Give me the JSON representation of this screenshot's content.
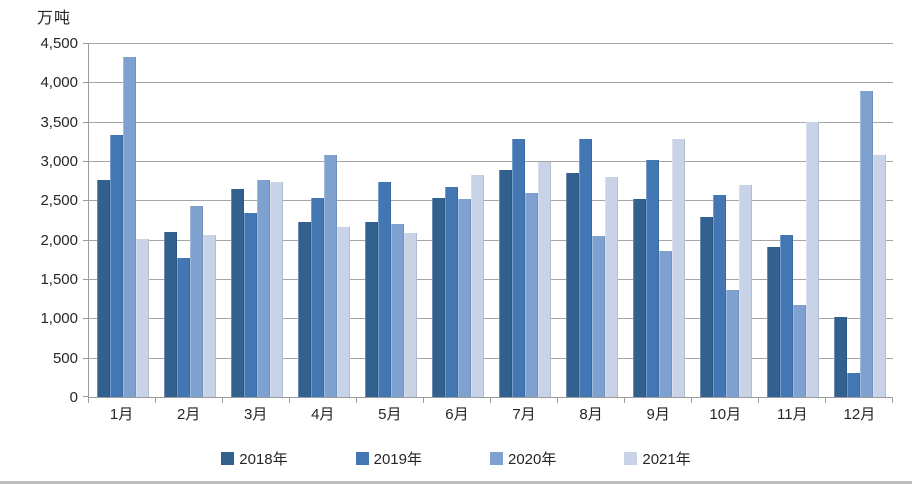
{
  "chart_data": {
    "type": "bar",
    "title": "",
    "unit": "万吨",
    "categories": [
      "1月",
      "2月",
      "3月",
      "4月",
      "5月",
      "6月",
      "7月",
      "8月",
      "9月",
      "10月",
      "11月",
      "12月"
    ],
    "series": [
      {
        "name": "2018年",
        "color": "#32608F",
        "values": [
          2770,
          2100,
          2650,
          2230,
          2230,
          2540,
          2900,
          2860,
          2520,
          2300,
          1910,
          1020
        ]
      },
      {
        "name": "2019年",
        "color": "#4377B4",
        "values": [
          3340,
          1770,
          2340,
          2540,
          2740,
          2680,
          3290,
          3290,
          3020,
          2570,
          2070,
          300
        ]
      },
      {
        "name": "2020年",
        "color": "#7FA1D0",
        "values": [
          4330,
          2440,
          2770,
          3090,
          2210,
          2530,
          2600,
          2050,
          1860,
          1360,
          1170,
          3900
        ]
      },
      {
        "name": "2021年",
        "color": "#C8D3E8",
        "values": [
          2010,
          2070,
          2740,
          2170,
          2090,
          2830,
          3000,
          2810,
          3290,
          2700,
          3500,
          3080
        ]
      }
    ],
    "ylim": [
      0,
      4500
    ],
    "y_tick_step": 500,
    "y_tick_labels": [
      "0",
      "500",
      "1,000",
      "1,500",
      "2,000",
      "2,500",
      "3,000",
      "3,500",
      "4,000",
      "4,500"
    ],
    "grid": true,
    "legend_position": "bottom"
  }
}
